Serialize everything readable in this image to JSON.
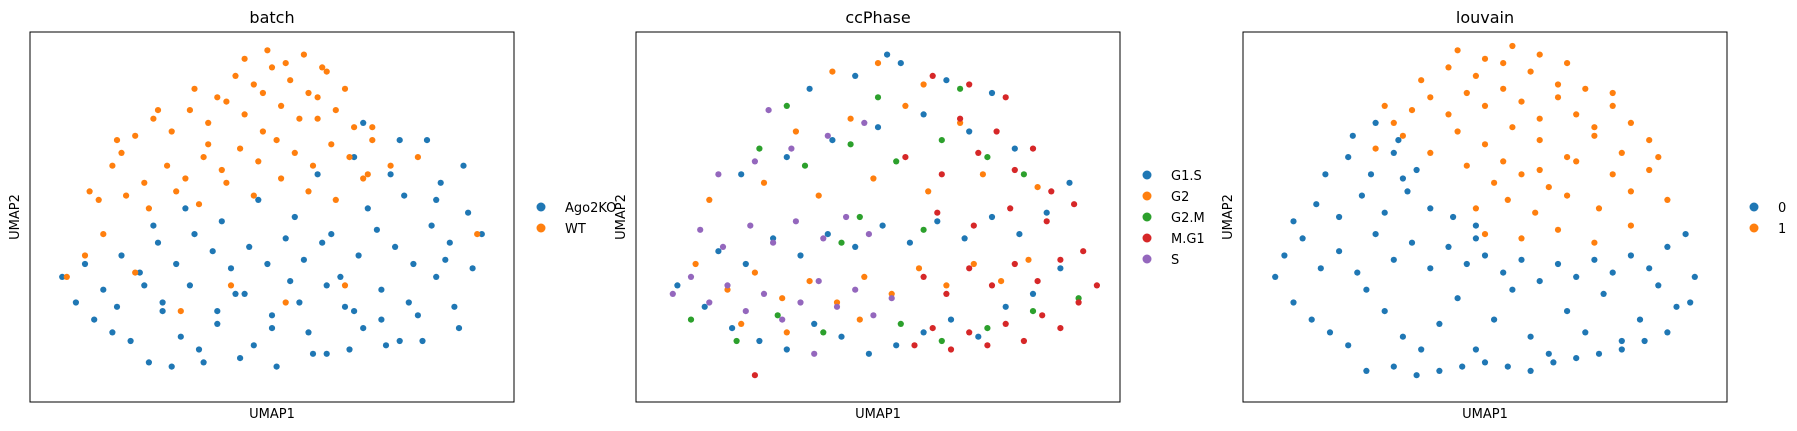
{
  "colors": {
    "blue": "#1f77b4",
    "orange": "#ff7f0e",
    "green": "#2ca02c",
    "red": "#d62728",
    "purple": "#9467bd"
  },
  "chart_data": [
    {
      "type": "scatter",
      "title": "batch",
      "xlabel": "UMAP1",
      "ylabel": "UMAP2",
      "xlim": [
        0,
        10
      ],
      "ylim": [
        0,
        8
      ],
      "grid": false,
      "ticks": "none",
      "legend_position": "right",
      "legend": [
        {
          "name": "Ago2KO",
          "color": "#1f77b4"
        },
        {
          "name": "WT",
          "color": "#ff7f0e"
        }
      ],
      "series": [
        {
          "name": "Ago2KO",
          "color": "#1f77b4",
          "x": [
            0.4,
            0.7,
            1.1,
            1.5,
            1.9,
            2.2,
            2.6,
            3.0,
            3.4,
            3.8,
            4.2,
            4.6,
            5.0,
            5.4,
            5.8,
            6.2,
            6.6,
            7.0,
            7.4,
            7.8,
            8.2,
            8.6,
            9.0,
            9.4,
            0.9,
            1.3,
            1.7,
            2.1,
            2.5,
            2.9,
            3.3,
            3.7,
            4.1,
            4.5,
            4.9,
            5.3,
            5.7,
            6.1,
            6.5,
            6.9,
            7.3,
            7.7,
            8.1,
            8.5,
            8.9,
            9.3,
            2.3,
            2.8,
            3.5,
            4.3,
            5.1,
            5.9,
            6.7,
            7.5,
            8.3,
            9.1,
            1.6,
            2.4,
            3.1,
            3.9,
            4.7,
            5.5,
            6.3,
            7.1,
            7.9,
            8.7,
            2.6,
            3.2,
            3.8,
            4.4,
            5.0,
            5.6,
            6.2,
            6.8,
            7.4,
            8.0,
            8.8,
            9.6,
            6.0,
            6.8,
            7.6,
            8.4,
            9.2,
            7.0,
            7.8,
            8.6
          ],
          "y": [
            2.6,
            2.0,
            1.6,
            1.3,
            1.1,
            2.4,
            1.8,
            1.2,
            0.9,
            1.5,
            2.2,
            1.0,
            1.7,
            2.5,
            1.3,
            0.8,
            1.9,
            1.4,
            2.3,
            1.1,
            1.7,
            2.6,
            1.9,
            2.8,
            2.9,
            2.3,
            3.1,
            2.7,
            3.4,
            2.9,
            3.6,
            3.2,
            2.8,
            3.3,
            2.9,
            3.5,
            3.0,
            3.4,
            2.6,
            3.1,
            3.7,
            3.3,
            2.9,
            3.8,
            3.4,
            4.1,
            0.6,
            0.5,
            0.6,
            0.7,
            0.5,
            0.8,
            0.9,
            1.0,
            1.1,
            1.4,
            1.9,
            3.8,
            4.2,
            3.9,
            4.4,
            4.0,
            3.6,
            4.2,
            4.5,
            4.8,
            2.0,
            2.4,
            1.8,
            2.2,
            1.4,
            2.0,
            2.4,
            1.8,
            1.6,
            2.0,
            3.0,
            3.6,
            5.0,
            5.4,
            5.0,
            5.8,
            5.2,
            6.2,
            5.8,
            4.4
          ]
        },
        {
          "name": "WT",
          "color": "#ff7f0e",
          "x": [
            1.7,
            2.0,
            2.4,
            2.8,
            3.2,
            3.6,
            4.0,
            4.4,
            4.8,
            5.2,
            5.6,
            6.0,
            6.4,
            6.8,
            7.2,
            2.2,
            2.7,
            3.1,
            3.5,
            3.9,
            4.3,
            4.7,
            5.1,
            5.5,
            5.9,
            6.3,
            6.7,
            7.1,
            3.3,
            3.8,
            4.2,
            4.6,
            5.0,
            5.4,
            5.8,
            6.2,
            6.6,
            4.4,
            4.9,
            5.3,
            5.7,
            6.1,
            0.5,
            0.9,
            1.3,
            1.2,
            1.8,
            2.3,
            2.9,
            3.4,
            4.0,
            4.6,
            5.2,
            5.8,
            6.4,
            7.0,
            7.6,
            8.2,
            1.6,
            2.5,
            3.6,
            4.8,
            6.0,
            7.2,
            2.0,
            3.0,
            4.1,
            5.3,
            6.6,
            9.5,
            1.0,
            1.5
          ],
          "y": [
            5.5,
            5.9,
            6.3,
            6.0,
            6.5,
            6.2,
            6.7,
            6.4,
            6.9,
            6.6,
            6.3,
            6.8,
            6.5,
            6.1,
            5.8,
            4.8,
            5.2,
            4.9,
            5.4,
            5.1,
            5.6,
            5.3,
            5.8,
            5.5,
            5.2,
            5.7,
            5.4,
            5.0,
            7.0,
            6.8,
            7.3,
            7.1,
            7.5,
            7.2,
            6.9,
            7.4,
            7.0,
            7.7,
            7.9,
            7.6,
            7.8,
            7.5,
            2.6,
            3.1,
            3.6,
            4.4,
            4.5,
            4.2,
            4.6,
            4.3,
            4.8,
            4.5,
            4.9,
            4.6,
            4.4,
            4.9,
            5.2,
            5.4,
            5.8,
            6.5,
            5.7,
            6.0,
            6.3,
            6.1,
            2.7,
            1.8,
            2.4,
            2.0,
            2.4,
            3.6,
            4.6,
            5.2
          ]
        }
      ]
    },
    {
      "type": "scatter",
      "title": "ccPhase",
      "xlabel": "UMAP1",
      "ylabel": "UMAP2",
      "xlim": [
        0,
        10
      ],
      "ylim": [
        0,
        8
      ],
      "grid": false,
      "ticks": "none",
      "legend_position": "right",
      "legend": [
        {
          "name": "G1.S",
          "color": "#1f77b4"
        },
        {
          "name": "G2",
          "color": "#ff7f0e"
        },
        {
          "name": "G2.M",
          "color": "#2ca02c"
        },
        {
          "name": "M.G1",
          "color": "#d62728"
        },
        {
          "name": "S",
          "color": "#9467bd"
        }
      ],
      "series": [
        {
          "name": "G1.S",
          "color": "#1f77b4",
          "x": [
            0.6,
            1.2,
            1.8,
            2.4,
            3.0,
            3.6,
            4.2,
            4.8,
            5.4,
            6.0,
            6.6,
            7.2,
            7.8,
            8.4,
            9.0,
            1.5,
            2.1,
            2.7,
            3.3,
            3.9,
            4.5,
            5.1,
            5.7,
            6.3,
            6.9,
            7.5,
            8.1,
            8.7,
            2.0,
            3.0,
            4.0,
            5.0,
            6.0,
            7.0,
            8.0,
            9.2,
            3.5,
            4.5,
            5.5,
            6.5,
            7.5,
            5.2
          ],
          "y": [
            2.4,
            1.9,
            1.4,
            1.1,
            0.9,
            1.5,
            1.2,
            0.8,
            1.0,
            1.3,
            1.6,
            1.2,
            1.9,
            2.2,
            2.8,
            3.2,
            2.9,
            3.5,
            3.1,
            3.6,
            3.3,
            3.8,
            3.4,
            3.9,
            3.5,
            4.0,
            3.6,
            4.1,
            5.0,
            5.4,
            5.8,
            6.1,
            6.4,
            6.0,
            5.6,
            4.8,
            7.0,
            7.3,
            7.6,
            7.2,
            6.9,
            7.8
          ]
        },
        {
          "name": "G2",
          "color": "#ff7f0e",
          "x": [
            1.0,
            1.7,
            2.3,
            2.9,
            3.5,
            4.1,
            4.7,
            5.3,
            5.9,
            6.5,
            7.1,
            7.7,
            8.3,
            1.3,
            2.5,
            3.7,
            4.9,
            6.1,
            7.3,
            8.5,
            3.2,
            4.4,
            5.6,
            6.8,
            4.0,
            5.0,
            6.0,
            2.0,
            3.0,
            4.6
          ],
          "y": [
            2.9,
            2.3,
            2.7,
            2.1,
            2.5,
            2.0,
            2.6,
            2.2,
            2.8,
            2.4,
            2.9,
            2.5,
            3.0,
            4.4,
            4.8,
            4.5,
            4.9,
            4.6,
            5.0,
            4.7,
            6.0,
            6.3,
            6.6,
            6.2,
            7.4,
            7.6,
            7.1,
            1.5,
            1.3,
            1.6
          ]
        },
        {
          "name": "G2.M",
          "color": "#2ca02c",
          "x": [
            0.9,
            1.9,
            2.8,
            3.8,
            4.6,
            5.5,
            6.4,
            7.4,
            8.4,
            9.4,
            2.4,
            3.4,
            4.4,
            5.4,
            6.4,
            7.4,
            8.2,
            3.0,
            5.0,
            6.8,
            4.2,
            6.0
          ],
          "y": [
            1.6,
            1.1,
            1.7,
            1.3,
            4.0,
            1.5,
            1.1,
            1.4,
            1.8,
            2.1,
            5.6,
            5.2,
            5.7,
            5.3,
            5.8,
            5.4,
            5.0,
            6.6,
            6.8,
            7.0,
            3.4,
            3.7
          ]
        },
        {
          "name": "M.G1",
          "color": "#d62728",
          "x": [
            5.8,
            6.2,
            6.6,
            7.0,
            7.4,
            7.8,
            8.2,
            8.6,
            9.0,
            9.4,
            9.8,
            6.0,
            6.5,
            7.0,
            7.5,
            8.0,
            8.5,
            9.0,
            9.5,
            6.3,
            7.1,
            7.9,
            8.7,
            9.3,
            5.6,
            6.4,
            7.2,
            8.0,
            8.8,
            6.8,
            7.6,
            8.4,
            6.2,
            7.0,
            7.8,
            2.3
          ],
          "y": [
            1.0,
            1.4,
            0.9,
            1.3,
            1.0,
            1.5,
            1.1,
            1.7,
            1.4,
            2.0,
            2.4,
            2.6,
            2.2,
            2.8,
            2.4,
            2.9,
            2.5,
            3.0,
            3.2,
            4.1,
            3.8,
            4.2,
            3.9,
            4.3,
            5.4,
            5.0,
            5.5,
            5.1,
            4.6,
            6.3,
            6.0,
            5.6,
            7.3,
            7.1,
            6.8,
            0.3
          ]
        },
        {
          "name": "S",
          "color": "#9467bd",
          "x": [
            0.5,
            0.9,
            1.3,
            1.7,
            2.1,
            2.5,
            2.9,
            3.3,
            3.7,
            4.1,
            4.5,
            4.9,
            5.3,
            1.1,
            1.6,
            2.2,
            2.7,
            3.2,
            3.8,
            4.3,
            4.8,
            1.5,
            2.3,
            3.1,
            3.9,
            4.7,
            2.6,
            3.6
          ],
          "y": [
            2.2,
            2.6,
            2.0,
            2.4,
            1.8,
            2.2,
            1.6,
            2.0,
            2.5,
            1.9,
            2.3,
            1.7,
            2.1,
            3.7,
            3.3,
            3.8,
            3.4,
            3.9,
            3.5,
            4.0,
            3.6,
            5.0,
            5.3,
            5.6,
            5.9,
            6.2,
            6.5,
            0.8
          ]
        }
      ]
    },
    {
      "type": "scatter",
      "title": "louvain",
      "xlabel": "UMAP1",
      "ylabel": "UMAP2",
      "xlim": [
        0,
        10
      ],
      "ylim": [
        0,
        8
      ],
      "grid": false,
      "ticks": "none",
      "legend_position": "right",
      "legend": [
        {
          "name": "0",
          "color": "#1f77b4"
        },
        {
          "name": "1",
          "color": "#ff7f0e"
        }
      ],
      "series": [
        {
          "name": "0",
          "color": "#1f77b4",
          "x": [
            0.4,
            0.8,
            1.2,
            1.6,
            2.0,
            2.4,
            2.8,
            3.2,
            3.6,
            4.0,
            4.4,
            4.8,
            5.2,
            5.6,
            6.0,
            6.4,
            6.8,
            7.2,
            7.6,
            8.0,
            8.4,
            8.8,
            9.2,
            9.6,
            0.6,
            1.0,
            1.4,
            1.8,
            2.2,
            2.6,
            3.0,
            3.4,
            3.8,
            4.2,
            4.6,
            5.0,
            5.4,
            5.8,
            6.2,
            6.6,
            7.0,
            7.4,
            7.8,
            8.2,
            8.6,
            9.0,
            9.4,
            0.8,
            1.3,
            1.8,
            2.3,
            2.8,
            3.3,
            3.8,
            4.3,
            4.8,
            1.5,
            2.0,
            2.5,
            3.0,
            3.5,
            2.1,
            2.6,
            3.1,
            2.4,
            3.0,
            3.5,
            4.0,
            4.5,
            5.0,
            5.5,
            6.0,
            6.5,
            7.0,
            7.5,
            8.0,
            8.5,
            9.0,
            9.5,
            3.2,
            4.8
          ],
          "y": [
            2.6,
            2.0,
            1.6,
            1.3,
            1.0,
            2.3,
            1.8,
            1.2,
            0.9,
            1.5,
            2.1,
            0.9,
            1.6,
            2.3,
            1.2,
            0.8,
            1.8,
            1.3,
            2.2,
            1.1,
            1.6,
            2.4,
            1.9,
            2.6,
            3.1,
            3.5,
            2.8,
            3.2,
            2.7,
            3.6,
            3.0,
            3.4,
            2.8,
            3.3,
            2.9,
            3.1,
            2.7,
            3.0,
            2.5,
            2.9,
            2.6,
            3.0,
            2.7,
            3.1,
            2.8,
            3.3,
            3.6,
            3.9,
            4.3,
            4.0,
            4.5,
            4.1,
            4.6,
            4.2,
            4.0,
            3.8,
            5.0,
            5.4,
            5.0,
            5.5,
            5.1,
            5.9,
            6.2,
            5.8,
            0.4,
            0.5,
            0.3,
            0.4,
            0.5,
            0.6,
            0.5,
            0.4,
            0.6,
            0.7,
            0.8,
            0.9,
            1.1,
            1.3,
            2.0,
            4.9,
            3.5
          ]
        },
        {
          "name": "1",
          "color": "#ff7f0e",
          "x": [
            3.0,
            3.4,
            3.8,
            4.2,
            4.6,
            5.0,
            5.4,
            5.8,
            6.2,
            6.6,
            7.0,
            7.4,
            7.8,
            8.2,
            8.6,
            2.6,
            3.2,
            3.8,
            4.4,
            5.0,
            5.6,
            6.2,
            6.8,
            7.4,
            8.0,
            8.6,
            3.6,
            4.2,
            4.8,
            5.4,
            6.0,
            6.6,
            7.2,
            7.8,
            4.4,
            5.0,
            5.6,
            6.2,
            6.8,
            5.2,
            5.8,
            6.4,
            4.8,
            5.5,
            6.1,
            6.8,
            7.5,
            8.2,
            9.0,
            5.0,
            5.8,
            6.6,
            7.4,
            8.2,
            4.6,
            5.4,
            6.2,
            7.0,
            7.8,
            2.8,
            8.8
          ],
          "y": [
            6.2,
            6.5,
            6.8,
            6.4,
            6.9,
            6.6,
            7.0,
            6.7,
            6.3,
            6.8,
            6.4,
            6.1,
            6.6,
            6.2,
            5.8,
            5.6,
            5.9,
            5.5,
            6.0,
            5.7,
            6.1,
            5.8,
            5.4,
            5.9,
            5.5,
            5.1,
            7.2,
            7.5,
            7.3,
            7.6,
            7.4,
            7.1,
            7.0,
            6.9,
            7.9,
            7.7,
            8.0,
            7.8,
            7.6,
            4.8,
            5.0,
            4.7,
            4.2,
            4.4,
            4.1,
            4.5,
            4.2,
            4.6,
            4.4,
            3.6,
            3.5,
            3.7,
            3.4,
            3.8,
            5.2,
            5.3,
            5.1,
            5.3,
            5.0,
            6.6,
            5.4
          ]
        }
      ]
    }
  ]
}
